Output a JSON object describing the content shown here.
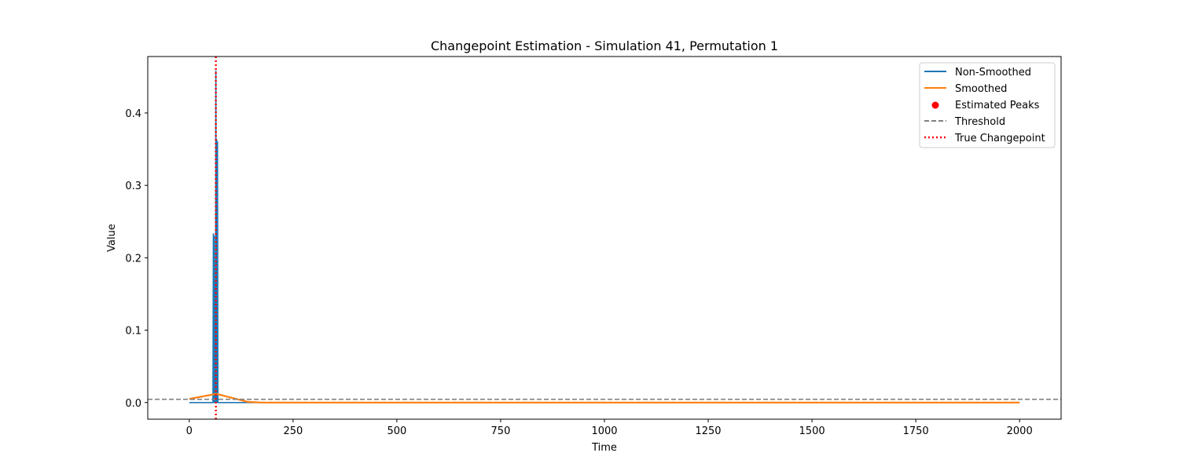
{
  "chart_data": {
    "type": "line",
    "title": "Changepoint Estimation - Simulation 41, Permutation 1",
    "xlabel": "Time",
    "ylabel": "Value",
    "xlim": [
      -100,
      2100
    ],
    "ylim": [
      -0.023,
      0.478
    ],
    "xticks": [
      0,
      250,
      500,
      750,
      1000,
      1250,
      1500,
      1750,
      2000
    ],
    "yticks": [
      0.0,
      0.1,
      0.2,
      0.3,
      0.4
    ],
    "ytick_labels": [
      "0.0",
      "0.1",
      "0.2",
      "0.3",
      "0.4"
    ],
    "grid": false,
    "legend_position": "top-right",
    "series": [
      {
        "name": "Non-Smoothed",
        "kind": "line",
        "color": "#1f77b4",
        "x": [
          0,
          57,
          58,
          59,
          60,
          61,
          62,
          63,
          64,
          65,
          66,
          67,
          68,
          69,
          70,
          150,
          2000
        ],
        "y": [
          0,
          0,
          0.233,
          0,
          0.23,
          0,
          0.1,
          0,
          0.458,
          0,
          0.363,
          0,
          0.36,
          0,
          0,
          0,
          0
        ]
      },
      {
        "name": "Smoothed",
        "kind": "line",
        "color": "#ff7f0e",
        "x": [
          0,
          65,
          140,
          175,
          2000
        ],
        "y": [
          0.005,
          0.012,
          0.001,
          0.0,
          0.0
        ]
      },
      {
        "name": "Estimated Peaks",
        "kind": "scatter",
        "color": "#ff0000",
        "x": [],
        "y": []
      },
      {
        "name": "Threshold",
        "kind": "hline",
        "color": "#808080",
        "y": 0.0045
      },
      {
        "name": "True Changepoint",
        "kind": "vline",
        "color": "#ff0000",
        "x": 64
      }
    ]
  }
}
